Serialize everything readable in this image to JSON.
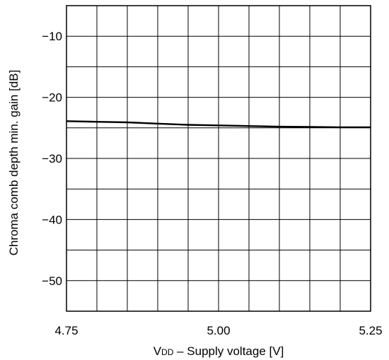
{
  "chart_data": {
    "type": "line",
    "title": "",
    "xlabel": {
      "main": "V",
      "subscript": "DD",
      "rest": " – Supply voltage [V]"
    },
    "ylabel": "Chroma comb depth min. gain [dB]",
    "xlim": [
      4.75,
      5.25
    ],
    "ylim": [
      -55,
      -5
    ],
    "x_ticks": [
      {
        "value": 4.75,
        "label": "4.75"
      },
      {
        "value": 5.0,
        "label": "5.00"
      },
      {
        "value": 5.25,
        "label": "5.25"
      }
    ],
    "y_ticks": [
      {
        "value": -10,
        "label": "−10"
      },
      {
        "value": -20,
        "label": "−20"
      },
      {
        "value": -30,
        "label": "−30"
      },
      {
        "value": -40,
        "label": "−40"
      },
      {
        "value": -50,
        "label": "−50"
      }
    ],
    "x_grid_step": 0.05,
    "y_grid_step": 5,
    "grid": true,
    "series": [
      {
        "x": [
          4.75,
          4.8,
          4.85,
          4.9,
          4.95,
          5.0,
          5.05,
          5.1,
          5.15,
          5.2,
          5.25
        ],
        "y": [
          -23.9,
          -24.0,
          -24.1,
          -24.3,
          -24.5,
          -24.6,
          -24.7,
          -24.8,
          -24.85,
          -24.9,
          -24.9
        ]
      }
    ]
  }
}
